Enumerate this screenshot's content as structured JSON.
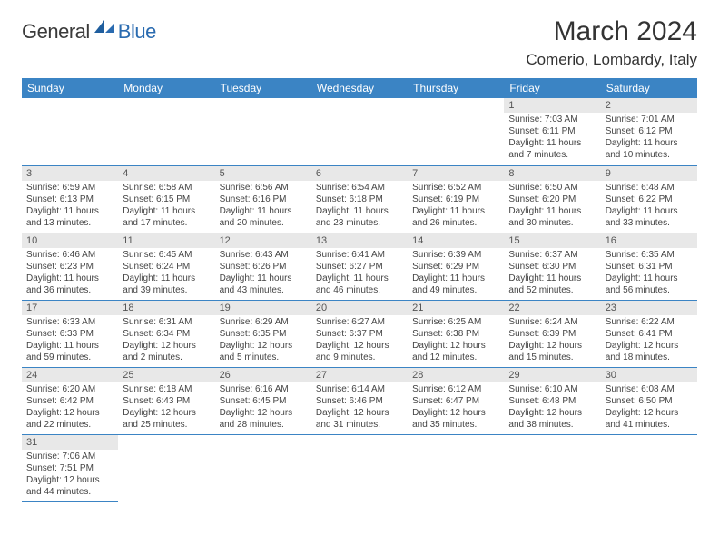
{
  "colors": {
    "header_bg": "#3b84c4",
    "header_text": "#ffffff",
    "daynum_bg": "#e8e8e8",
    "daynum_text": "#555555",
    "body_text": "#444444",
    "row_border": "#3b84c4",
    "logo_gray": "#3a3a3a",
    "logo_blue": "#2a6bb0"
  },
  "typography": {
    "title_fontsize": 30,
    "location_fontsize": 17,
    "dayheader_fontsize": 12,
    "daynum_fontsize": 11,
    "body_fontsize": 10
  },
  "logo": {
    "part1": "General",
    "part2": "Blue"
  },
  "title": "March 2024",
  "location": "Comerio, Lombardy, Italy",
  "dayHeaders": [
    "Sunday",
    "Monday",
    "Tuesday",
    "Wednesday",
    "Thursday",
    "Friday",
    "Saturday"
  ],
  "weeks": [
    [
      null,
      null,
      null,
      null,
      null,
      {
        "n": "1",
        "sr": "Sunrise: 7:03 AM",
        "ss": "Sunset: 6:11 PM",
        "d1": "Daylight: 11 hours",
        "d2": "and 7 minutes."
      },
      {
        "n": "2",
        "sr": "Sunrise: 7:01 AM",
        "ss": "Sunset: 6:12 PM",
        "d1": "Daylight: 11 hours",
        "d2": "and 10 minutes."
      }
    ],
    [
      {
        "n": "3",
        "sr": "Sunrise: 6:59 AM",
        "ss": "Sunset: 6:13 PM",
        "d1": "Daylight: 11 hours",
        "d2": "and 13 minutes."
      },
      {
        "n": "4",
        "sr": "Sunrise: 6:58 AM",
        "ss": "Sunset: 6:15 PM",
        "d1": "Daylight: 11 hours",
        "d2": "and 17 minutes."
      },
      {
        "n": "5",
        "sr": "Sunrise: 6:56 AM",
        "ss": "Sunset: 6:16 PM",
        "d1": "Daylight: 11 hours",
        "d2": "and 20 minutes."
      },
      {
        "n": "6",
        "sr": "Sunrise: 6:54 AM",
        "ss": "Sunset: 6:18 PM",
        "d1": "Daylight: 11 hours",
        "d2": "and 23 minutes."
      },
      {
        "n": "7",
        "sr": "Sunrise: 6:52 AM",
        "ss": "Sunset: 6:19 PM",
        "d1": "Daylight: 11 hours",
        "d2": "and 26 minutes."
      },
      {
        "n": "8",
        "sr": "Sunrise: 6:50 AM",
        "ss": "Sunset: 6:20 PM",
        "d1": "Daylight: 11 hours",
        "d2": "and 30 minutes."
      },
      {
        "n": "9",
        "sr": "Sunrise: 6:48 AM",
        "ss": "Sunset: 6:22 PM",
        "d1": "Daylight: 11 hours",
        "d2": "and 33 minutes."
      }
    ],
    [
      {
        "n": "10",
        "sr": "Sunrise: 6:46 AM",
        "ss": "Sunset: 6:23 PM",
        "d1": "Daylight: 11 hours",
        "d2": "and 36 minutes."
      },
      {
        "n": "11",
        "sr": "Sunrise: 6:45 AM",
        "ss": "Sunset: 6:24 PM",
        "d1": "Daylight: 11 hours",
        "d2": "and 39 minutes."
      },
      {
        "n": "12",
        "sr": "Sunrise: 6:43 AM",
        "ss": "Sunset: 6:26 PM",
        "d1": "Daylight: 11 hours",
        "d2": "and 43 minutes."
      },
      {
        "n": "13",
        "sr": "Sunrise: 6:41 AM",
        "ss": "Sunset: 6:27 PM",
        "d1": "Daylight: 11 hours",
        "d2": "and 46 minutes."
      },
      {
        "n": "14",
        "sr": "Sunrise: 6:39 AM",
        "ss": "Sunset: 6:29 PM",
        "d1": "Daylight: 11 hours",
        "d2": "and 49 minutes."
      },
      {
        "n": "15",
        "sr": "Sunrise: 6:37 AM",
        "ss": "Sunset: 6:30 PM",
        "d1": "Daylight: 11 hours",
        "d2": "and 52 minutes."
      },
      {
        "n": "16",
        "sr": "Sunrise: 6:35 AM",
        "ss": "Sunset: 6:31 PM",
        "d1": "Daylight: 11 hours",
        "d2": "and 56 minutes."
      }
    ],
    [
      {
        "n": "17",
        "sr": "Sunrise: 6:33 AM",
        "ss": "Sunset: 6:33 PM",
        "d1": "Daylight: 11 hours",
        "d2": "and 59 minutes."
      },
      {
        "n": "18",
        "sr": "Sunrise: 6:31 AM",
        "ss": "Sunset: 6:34 PM",
        "d1": "Daylight: 12 hours",
        "d2": "and 2 minutes."
      },
      {
        "n": "19",
        "sr": "Sunrise: 6:29 AM",
        "ss": "Sunset: 6:35 PM",
        "d1": "Daylight: 12 hours",
        "d2": "and 5 minutes."
      },
      {
        "n": "20",
        "sr": "Sunrise: 6:27 AM",
        "ss": "Sunset: 6:37 PM",
        "d1": "Daylight: 12 hours",
        "d2": "and 9 minutes."
      },
      {
        "n": "21",
        "sr": "Sunrise: 6:25 AM",
        "ss": "Sunset: 6:38 PM",
        "d1": "Daylight: 12 hours",
        "d2": "and 12 minutes."
      },
      {
        "n": "22",
        "sr": "Sunrise: 6:24 AM",
        "ss": "Sunset: 6:39 PM",
        "d1": "Daylight: 12 hours",
        "d2": "and 15 minutes."
      },
      {
        "n": "23",
        "sr": "Sunrise: 6:22 AM",
        "ss": "Sunset: 6:41 PM",
        "d1": "Daylight: 12 hours",
        "d2": "and 18 minutes."
      }
    ],
    [
      {
        "n": "24",
        "sr": "Sunrise: 6:20 AM",
        "ss": "Sunset: 6:42 PM",
        "d1": "Daylight: 12 hours",
        "d2": "and 22 minutes."
      },
      {
        "n": "25",
        "sr": "Sunrise: 6:18 AM",
        "ss": "Sunset: 6:43 PM",
        "d1": "Daylight: 12 hours",
        "d2": "and 25 minutes."
      },
      {
        "n": "26",
        "sr": "Sunrise: 6:16 AM",
        "ss": "Sunset: 6:45 PM",
        "d1": "Daylight: 12 hours",
        "d2": "and 28 minutes."
      },
      {
        "n": "27",
        "sr": "Sunrise: 6:14 AM",
        "ss": "Sunset: 6:46 PM",
        "d1": "Daylight: 12 hours",
        "d2": "and 31 minutes."
      },
      {
        "n": "28",
        "sr": "Sunrise: 6:12 AM",
        "ss": "Sunset: 6:47 PM",
        "d1": "Daylight: 12 hours",
        "d2": "and 35 minutes."
      },
      {
        "n": "29",
        "sr": "Sunrise: 6:10 AM",
        "ss": "Sunset: 6:48 PM",
        "d1": "Daylight: 12 hours",
        "d2": "and 38 minutes."
      },
      {
        "n": "30",
        "sr": "Sunrise: 6:08 AM",
        "ss": "Sunset: 6:50 PM",
        "d1": "Daylight: 12 hours",
        "d2": "and 41 minutes."
      }
    ],
    [
      {
        "n": "31",
        "sr": "Sunrise: 7:06 AM",
        "ss": "Sunset: 7:51 PM",
        "d1": "Daylight: 12 hours",
        "d2": "and 44 minutes."
      },
      null,
      null,
      null,
      null,
      null,
      null
    ]
  ]
}
